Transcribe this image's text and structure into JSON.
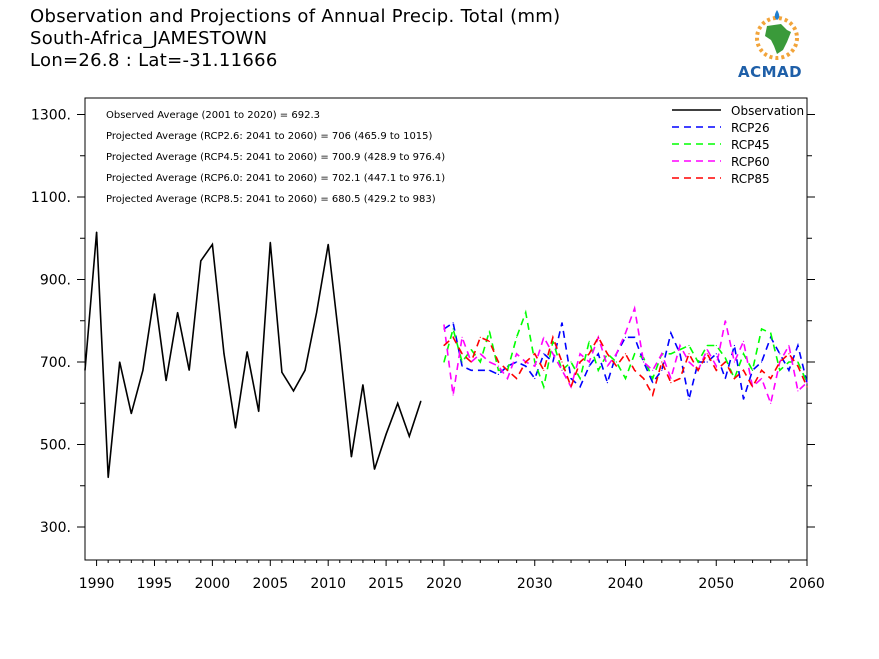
{
  "header": {
    "title": "Observation and Projections of Annual Precip. Total (mm)",
    "location": "South-Africa_JAMESTOWN",
    "coords": "Lon=26.8 : Lat=-31.11666"
  },
  "logo": {
    "text": "ACMAD",
    "icon": "africa-map-logo"
  },
  "colors": {
    "observation": "#000000",
    "RCP26": "#0000ff",
    "RCP45": "#00ff00",
    "RCP60": "#ff00ff",
    "RCP85": "#ff0000"
  },
  "chart_data": {
    "type": "line",
    "title": "Observation and Projections of Annual Precip. Total (mm)",
    "xlabel": "",
    "ylabel": "",
    "xlim": [
      1989,
      2060
    ],
    "ylim": [
      220,
      1340
    ],
    "y_ticks": [
      300,
      500,
      700,
      900,
      1100,
      1300
    ],
    "y_tick_labels": [
      "300.",
      "500.",
      "700.",
      "900.",
      "1100.",
      "1300."
    ],
    "x_ticks": [
      1990,
      1995,
      2000,
      2005,
      2010,
      2015,
      2020,
      2030,
      2040,
      2050,
      2060
    ],
    "x_tick_labels": [
      "1990",
      "1995",
      "2000",
      "2005",
      "2010",
      "2015",
      "2020",
      "2030",
      "2040",
      "2050",
      "2060"
    ],
    "legend_position": "top-right",
    "annotations": [
      "Observed Average (2001 to 2020) = 692.3",
      "Projected Average (RCP2.6: 2041 to 2060) = 706 (465.9 to 1015)",
      "Projected Average (RCP4.5: 2041 to 2060) = 700.9 (428.9 to 976.4)",
      "Projected Average (RCP6.0: 2041 to 2060) = 702.1 (447.1 to 976.1)",
      "Projected Average (RCP8.5: 2041 to 2060) = 680.5 (429.2 to 983)"
    ],
    "series": [
      {
        "name": "Observation",
        "style": "solid",
        "x": [
          1989,
          1990,
          1991,
          1992,
          1993,
          1994,
          1995,
          1996,
          1997,
          1998,
          1999,
          2000,
          2001,
          2002,
          2003,
          2004,
          2005,
          2006,
          2007,
          2008,
          2009,
          2010,
          2011,
          2012,
          2013,
          2014,
          2015,
          2016,
          2017,
          2018,
          2019,
          2020
        ],
        "values": [
          680,
          1015,
          420,
          700,
          575,
          680,
          865,
          655,
          820,
          680,
          945,
          985,
          720,
          540,
          725,
          580,
          990,
          675,
          630,
          680,
          820,
          985,
          740,
          470,
          645,
          440,
          525,
          600,
          520,
          605,
          null,
          null
        ]
      },
      {
        "name": "RCP26",
        "style": "dashed",
        "x": [
          2020,
          2021,
          2022,
          2023,
          2024,
          2025,
          2026,
          2027,
          2028,
          2029,
          2030,
          2031,
          2032,
          2033,
          2034,
          2035,
          2036,
          2037,
          2038,
          2039,
          2040,
          2041,
          2042,
          2043,
          2044,
          2045,
          2046,
          2047,
          2048,
          2049,
          2050,
          2051,
          2052,
          2053,
          2054,
          2055,
          2056,
          2057,
          2058,
          2059,
          2060
        ],
        "values": [
          780,
          795,
          690,
          680,
          680,
          680,
          670,
          690,
          700,
          690,
          660,
          720,
          700,
          795,
          660,
          640,
          690,
          720,
          650,
          720,
          760,
          760,
          700,
          650,
          680,
          770,
          720,
          610,
          700,
          700,
          720,
          660,
          740,
          610,
          680,
          700,
          760,
          720,
          680,
          740,
          650
        ]
      },
      {
        "name": "RCP45",
        "style": "dashed",
        "x": [
          2020,
          2021,
          2022,
          2023,
          2024,
          2025,
          2026,
          2027,
          2028,
          2029,
          2030,
          2031,
          2032,
          2033,
          2034,
          2035,
          2036,
          2037,
          2038,
          2039,
          2040,
          2041,
          2042,
          2043,
          2044,
          2045,
          2046,
          2047,
          2048,
          2049,
          2050,
          2051,
          2052,
          2053,
          2054,
          2055,
          2056,
          2057,
          2058,
          2059,
          2060
        ],
        "values": [
          700,
          780,
          700,
          730,
          700,
          775,
          680,
          680,
          760,
          820,
          700,
          640,
          750,
          680,
          700,
          660,
          750,
          680,
          720,
          700,
          660,
          720,
          710,
          660,
          720,
          720,
          730,
          740,
          700,
          740,
          740,
          710,
          660,
          720,
          680,
          780,
          770,
          680,
          700,
          700,
          650
        ]
      },
      {
        "name": "RCP60",
        "style": "dashed",
        "x": [
          2020,
          2021,
          2022,
          2023,
          2024,
          2025,
          2026,
          2027,
          2028,
          2029,
          2030,
          2031,
          2032,
          2033,
          2034,
          2035,
          2036,
          2037,
          2038,
          2039,
          2040,
          2041,
          2042,
          2043,
          2044,
          2045,
          2046,
          2047,
          2048,
          2049,
          2050,
          2051,
          2052,
          2053,
          2054,
          2055,
          2056,
          2057,
          2058,
          2059,
          2060
        ],
        "values": [
          790,
          620,
          760,
          700,
          720,
          700,
          690,
          660,
          720,
          700,
          690,
          760,
          720,
          680,
          640,
          720,
          700,
          760,
          690,
          720,
          770,
          830,
          700,
          680,
          720,
          660,
          740,
          700,
          680,
          730,
          690,
          800,
          700,
          750,
          640,
          660,
          600,
          700,
          740,
          630,
          650
        ]
      },
      {
        "name": "RCP85",
        "style": "dashed",
        "x": [
          2020,
          2021,
          2022,
          2023,
          2024,
          2025,
          2026,
          2027,
          2028,
          2029,
          2030,
          2031,
          2032,
          2033,
          2034,
          2035,
          2036,
          2037,
          2038,
          2039,
          2040,
          2041,
          2042,
          2043,
          2044,
          2045,
          2046,
          2047,
          2048,
          2049,
          2050,
          2051,
          2052,
          2053,
          2054,
          2055,
          2056,
          2057,
          2058,
          2059,
          2060
        ],
        "values": [
          740,
          760,
          720,
          700,
          760,
          750,
          700,
          680,
          660,
          700,
          720,
          680,
          760,
          700,
          640,
          700,
          720,
          760,
          720,
          690,
          720,
          680,
          660,
          620,
          700,
          650,
          660,
          720,
          680,
          720,
          680,
          700,
          660,
          680,
          640,
          680,
          660,
          700,
          720,
          690,
          640
        ]
      }
    ]
  }
}
